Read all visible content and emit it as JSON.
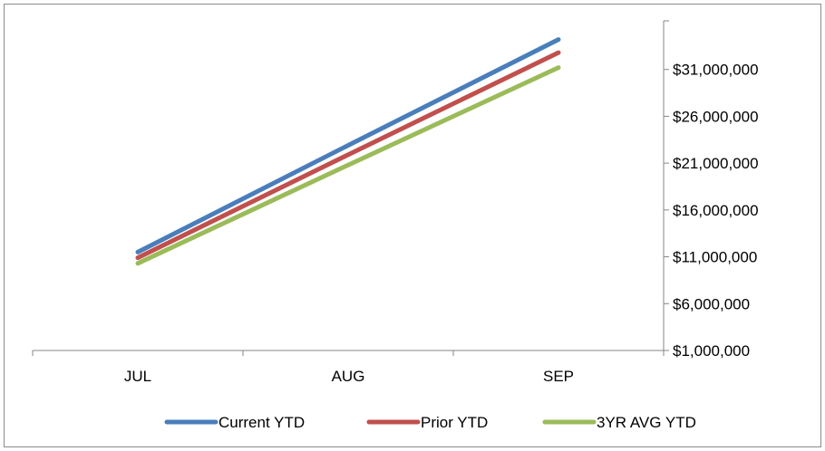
{
  "chart_data": {
    "type": "line",
    "title": "",
    "xlabel": "",
    "ylabel": "",
    "categories": [
      "JUL",
      "AUG",
      "SEP"
    ],
    "series": [
      {
        "name": "Current YTD",
        "color": "#4a7ebb",
        "values": [
          11500000,
          22900000,
          34200000
        ]
      },
      {
        "name": "Prior YTD",
        "color": "#c0504d",
        "values": [
          10900000,
          21900000,
          32800000
        ]
      },
      {
        "name": "3YR AVG YTD",
        "color": "#9bbb59",
        "values": [
          10300000,
          20800000,
          31200000
        ]
      }
    ],
    "yticks": [
      "$1,000,000",
      "$6,000,000",
      "$11,000,000",
      "$16,000,000",
      "$21,000,000",
      "$26,000,000",
      "$31,000,000"
    ],
    "ytick_values": [
      1000000,
      6000000,
      11000000,
      16000000,
      21000000,
      26000000,
      31000000
    ],
    "ylim": [
      1000000,
      36000000
    ],
    "y_axis_side": "right",
    "grid": false,
    "legend": "bottom"
  }
}
